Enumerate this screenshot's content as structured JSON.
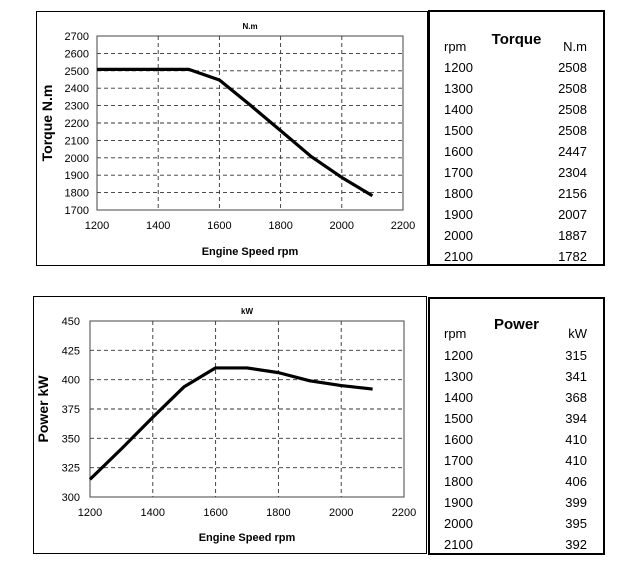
{
  "chart_data": [
    {
      "type": "line",
      "title": "N.m",
      "xlabel": "Engine Speed rpm",
      "ylabel": "Torque  N.m",
      "xlim": [
        1200,
        2200
      ],
      "ylim": [
        1700,
        2700
      ],
      "xticks": [
        1200,
        1400,
        1600,
        1800,
        2000,
        2200
      ],
      "yticks": [
        1700,
        1800,
        1900,
        2000,
        2100,
        2200,
        2300,
        2400,
        2500,
        2600,
        2700
      ],
      "grid": true,
      "x": [
        1200,
        1300,
        1400,
        1500,
        1600,
        1700,
        1800,
        1900,
        2000,
        2100
      ],
      "series": [
        {
          "values": [
            2508,
            2508,
            2508,
            2508,
            2447,
            2304,
            2156,
            2007,
            1887,
            1782
          ]
        }
      ]
    },
    {
      "type": "line",
      "title": "kW",
      "xlabel": "Engine Speed rpm",
      "ylabel": "Power  kW",
      "xlim": [
        1200,
        2200
      ],
      "ylim": [
        300,
        450
      ],
      "xticks": [
        1200,
        1400,
        1600,
        1800,
        2000,
        2200
      ],
      "yticks": [
        300,
        325,
        350,
        375,
        400,
        425,
        450
      ],
      "grid": true,
      "x": [
        1200,
        1300,
        1400,
        1500,
        1600,
        1700,
        1800,
        1900,
        2000,
        2100
      ],
      "series": [
        {
          "values": [
            315,
            341,
            368,
            394,
            410,
            410,
            406,
            399,
            395,
            392
          ]
        }
      ]
    }
  ],
  "tables": [
    {
      "title": "Torque",
      "col1_header": "rpm",
      "col2_header": "N.m",
      "rows": [
        [
          "1200",
          "2508"
        ],
        [
          "1300",
          "2508"
        ],
        [
          "1400",
          "2508"
        ],
        [
          "1500",
          "2508"
        ],
        [
          "1600",
          "2447"
        ],
        [
          "1700",
          "2304"
        ],
        [
          "1800",
          "2156"
        ],
        [
          "1900",
          "2007"
        ],
        [
          "2000",
          "1887"
        ],
        [
          "2100",
          "1782"
        ]
      ]
    },
    {
      "title": "Power",
      "col1_header": "rpm",
      "col2_header": "kW",
      "rows": [
        [
          "1200",
          "315"
        ],
        [
          "1300",
          "341"
        ],
        [
          "1400",
          "368"
        ],
        [
          "1500",
          "394"
        ],
        [
          "1600",
          "410"
        ],
        [
          "1700",
          "410"
        ],
        [
          "1800",
          "406"
        ],
        [
          "1900",
          "399"
        ],
        [
          "2000",
          "395"
        ],
        [
          "2100",
          "392"
        ]
      ]
    }
  ]
}
